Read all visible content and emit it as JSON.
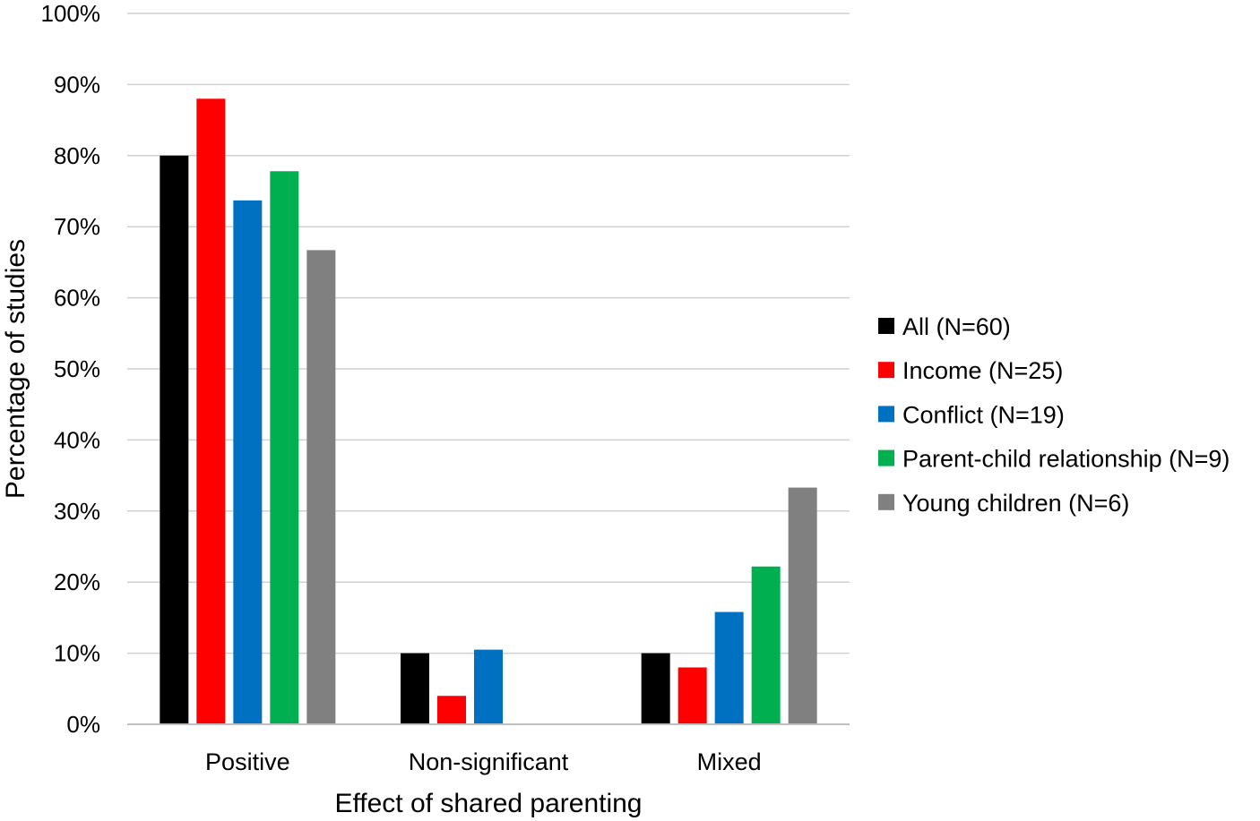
{
  "chart_data": {
    "type": "bar",
    "title": "",
    "xlabel": "Effect of shared parenting",
    "ylabel": "Percentage of studies",
    "ylim": [
      0,
      100
    ],
    "yticks": [
      {
        "value": 0,
        "label": "0%"
      },
      {
        "value": 10,
        "label": "10%"
      },
      {
        "value": 20,
        "label": "20%"
      },
      {
        "value": 30,
        "label": "30%"
      },
      {
        "value": 40,
        "label": "40%"
      },
      {
        "value": 50,
        "label": "50%"
      },
      {
        "value": 60,
        "label": "60%"
      },
      {
        "value": 70,
        "label": "70%"
      },
      {
        "value": 80,
        "label": "80%"
      },
      {
        "value": 90,
        "label": "90%"
      },
      {
        "value": 100,
        "label": "100%"
      }
    ],
    "grid": true,
    "legend_position": "right",
    "categories": [
      "Positive",
      "Non-significant",
      "Mixed"
    ],
    "series": [
      {
        "name": "All (N=60)",
        "color": "#000000",
        "values": [
          80,
          10,
          10
        ]
      },
      {
        "name": "Income (N=25)",
        "color": "#ff0000",
        "values": [
          88,
          4,
          8
        ]
      },
      {
        "name": "Conflict (N=19)",
        "color": "#0070c0",
        "values": [
          73.7,
          10.5,
          15.8
        ]
      },
      {
        "name": "Parent-child relationship (N=9)",
        "color": "#00b050",
        "values": [
          77.8,
          0,
          22.2
        ]
      },
      {
        "name": "Young children (N=6)",
        "color": "#808080",
        "values": [
          66.7,
          0,
          33.3
        ]
      }
    ]
  }
}
